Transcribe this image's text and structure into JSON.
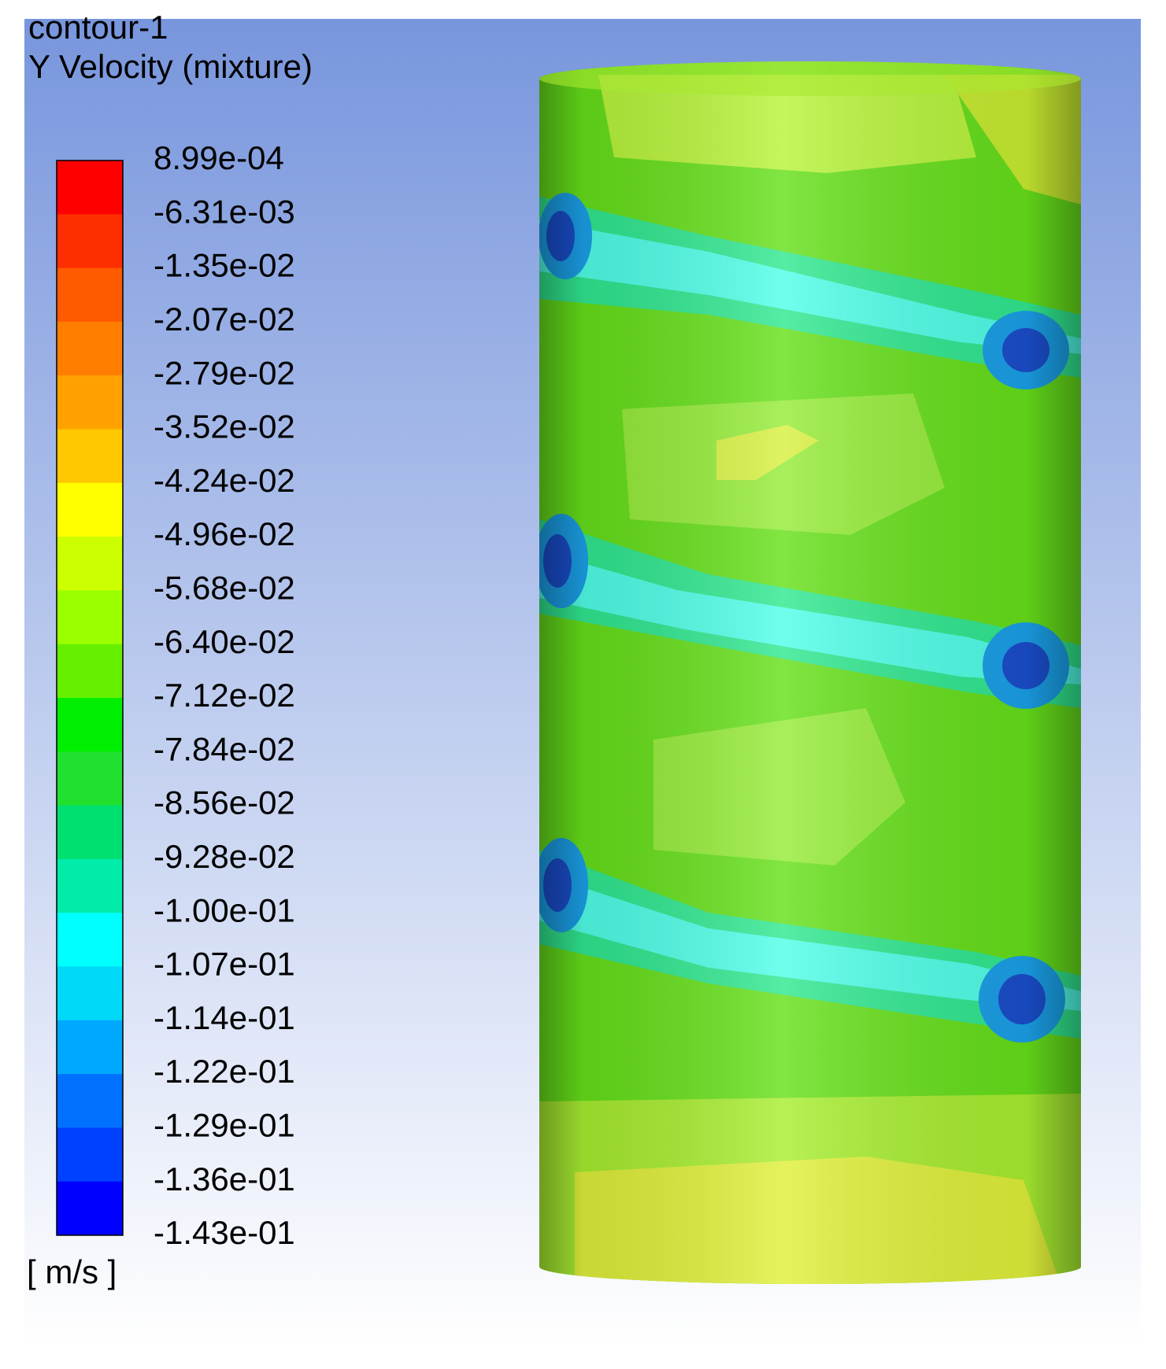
{
  "header": {
    "lines": [
      "contour-1",
      "Y Velocity (mixture)"
    ]
  },
  "colorbar": {
    "labels": [
      "8.99e-04",
      "-6.31e-03",
      "-1.35e-02",
      "-2.07e-02",
      "-2.79e-02",
      "-3.52e-02",
      "-4.24e-02",
      "-4.96e-02",
      "-5.68e-02",
      "-6.40e-02",
      "-7.12e-02",
      "-7.84e-02",
      "-8.56e-02",
      "-9.28e-02",
      "-1.00e-01",
      "-1.07e-01",
      "-1.14e-01",
      "-1.22e-01",
      "-1.29e-01",
      "-1.36e-01",
      "-1.43e-01"
    ],
    "colors": [
      "#ff0000",
      "#ff2e00",
      "#ff5a00",
      "#ff7e00",
      "#ffa200",
      "#ffc800",
      "#ffff00",
      "#ccff00",
      "#9cff00",
      "#66f000",
      "#00ee00",
      "#22e030",
      "#00e070",
      "#00eca8",
      "#00ffff",
      "#00d8f8",
      "#00a8ff",
      "#0070ff",
      "#0040ff",
      "#0000ff"
    ],
    "unit": "[ m/s ]"
  }
}
